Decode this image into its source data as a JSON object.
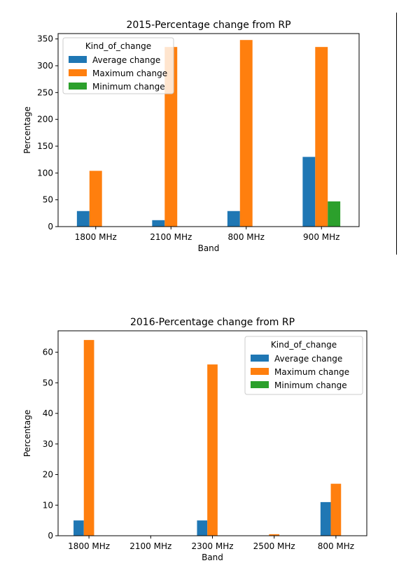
{
  "chart_data": [
    {
      "type": "bar",
      "title": "2015-Percentage change from RP",
      "xlabel": "Band",
      "ylabel": "Percentage",
      "categories": [
        "1800 MHz",
        "2100 MHz",
        "800 MHz",
        "900 MHz"
      ],
      "series": [
        {
          "name": "Average change",
          "values": [
            29,
            12,
            29,
            130
          ]
        },
        {
          "name": "Maximum change",
          "values": [
            104,
            335,
            348,
            335
          ]
        },
        {
          "name": "Minimum change",
          "values": [
            0,
            0,
            0,
            47
          ]
        }
      ],
      "ylim": [
        0,
        360
      ],
      "yticks": [
        0,
        50,
        100,
        150,
        200,
        250,
        300,
        350
      ],
      "grid": false,
      "legend": {
        "title": "Kind_of_change",
        "position": "top-left"
      }
    },
    {
      "type": "bar",
      "title": "2016-Percentage change from RP",
      "xlabel": "Band",
      "ylabel": "Percentage",
      "categories": [
        "1800 MHz",
        "2100 MHz",
        "2300 MHz",
        "2500 MHz",
        "800 MHz"
      ],
      "series": [
        {
          "name": "Average change",
          "values": [
            5,
            0,
            5,
            0,
            11
          ]
        },
        {
          "name": "Maximum change",
          "values": [
            64,
            0,
            56,
            0.5,
            17
          ]
        },
        {
          "name": "Minimum change",
          "values": [
            0,
            0,
            0,
            0,
            0
          ]
        }
      ],
      "ylim": [
        0,
        67
      ],
      "yticks": [
        0,
        10,
        20,
        30,
        40,
        50,
        60
      ],
      "grid": false,
      "legend": {
        "title": "Kind_of_change",
        "position": "top-right"
      }
    }
  ],
  "colors": {
    "series": [
      "#1f77b4",
      "#ff7f0e",
      "#2ca02c"
    ]
  }
}
